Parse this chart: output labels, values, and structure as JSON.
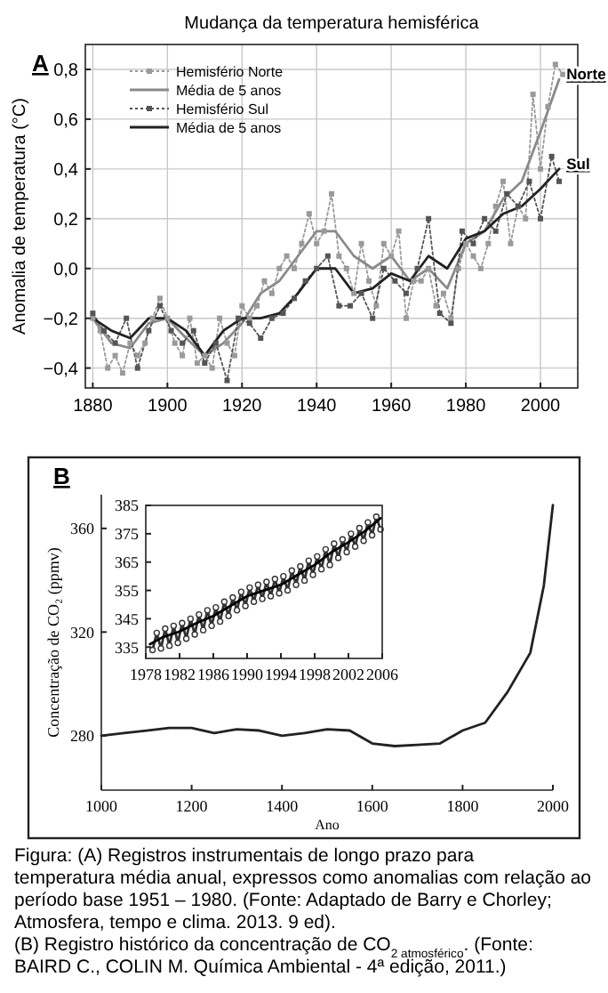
{
  "chart_data": [
    {
      "type": "line",
      "title": "Mudança da temperatura hemisférica",
      "ylabel": "Anomalia de temperatura (°C)",
      "xlim": [
        1878,
        2010
      ],
      "xticks": [
        1880,
        1900,
        1920,
        1940,
        1960,
        1980,
        2000
      ],
      "ylim": [
        -0.48,
        0.9
      ],
      "yticks": [
        {
          "value": -0.4,
          "label": "−0,4"
        },
        {
          "value": -0.2,
          "label": "−0,2"
        },
        {
          "value": 0,
          "label": "0,0"
        },
        {
          "value": 0.2,
          "label": "0,2"
        },
        {
          "value": 0.4,
          "label": "0,4"
        },
        {
          "value": 0.6,
          "label": "0,6"
        },
        {
          "value": 0.8,
          "label": "0,8"
        }
      ],
      "grid": true,
      "legend": "top left",
      "annotations": [
        "A",
        {
          "text": "Norte",
          "x": 2006,
          "y": 0.76
        },
        {
          "text": "Sul",
          "x": 2006,
          "y": 0.4
        }
      ],
      "series": [
        {
          "name": "Hemisfério Norte",
          "color": "#9a9a9a",
          "line_style": "dotted",
          "marker": "square",
          "x": [
            1880,
            1882,
            1884,
            1886,
            1888,
            1890,
            1892,
            1894,
            1896,
            1898,
            1900,
            1902,
            1904,
            1906,
            1908,
            1910,
            1912,
            1914,
            1916,
            1918,
            1920,
            1922,
            1924,
            1926,
            1928,
            1930,
            1932,
            1934,
            1936,
            1938,
            1940,
            1942,
            1944,
            1946,
            1948,
            1950,
            1952,
            1954,
            1956,
            1958,
            1960,
            1962,
            1964,
            1966,
            1968,
            1970,
            1972,
            1974,
            1976,
            1978,
            1980,
            1982,
            1984,
            1986,
            1988,
            1990,
            1992,
            1994,
            1996,
            1998,
            2000,
            2002,
            2004,
            2006
          ],
          "values": [
            -0.2,
            -0.25,
            -0.4,
            -0.35,
            -0.42,
            -0.3,
            -0.35,
            -0.3,
            -0.2,
            -0.12,
            -0.2,
            -0.3,
            -0.35,
            -0.2,
            -0.38,
            -0.35,
            -0.4,
            -0.2,
            -0.3,
            -0.35,
            -0.15,
            -0.2,
            -0.15,
            -0.05,
            -0.1,
            0.0,
            0.05,
            0.0,
            0.1,
            0.22,
            0.1,
            0.15,
            0.3,
            0.05,
            0.0,
            -0.1,
            0.1,
            -0.05,
            -0.15,
            0.1,
            0.05,
            0.15,
            -0.2,
            -0.05,
            -0.05,
            0.0,
            -0.15,
            -0.1,
            -0.2,
            0.0,
            0.1,
            0.05,
            0.0,
            0.1,
            0.25,
            0.35,
            0.1,
            0.25,
            0.2,
            0.7,
            0.4,
            0.65,
            0.82,
            0.78
          ]
        },
        {
          "name": "Média de 5 anos",
          "color": "#8a8a8a",
          "line_style": "solid",
          "marker": "none",
          "x": [
            1880,
            1885,
            1890,
            1895,
            1900,
            1905,
            1910,
            1915,
            1920,
            1925,
            1930,
            1935,
            1940,
            1945,
            1950,
            1955,
            1960,
            1965,
            1970,
            1975,
            1980,
            1985,
            1990,
            1995,
            2000,
            2005
          ],
          "values": [
            -0.2,
            -0.3,
            -0.32,
            -0.22,
            -0.2,
            -0.28,
            -0.35,
            -0.3,
            -0.22,
            -0.1,
            -0.05,
            0.05,
            0.15,
            0.15,
            0.05,
            0.0,
            0.05,
            -0.05,
            0.0,
            -0.08,
            0.1,
            0.15,
            0.28,
            0.35,
            0.55,
            0.76
          ]
        },
        {
          "name": "Hemisfério Sul",
          "color": "#555555",
          "line_style": "dotted",
          "marker": "square",
          "x": [
            1880,
            1883,
            1886,
            1889,
            1892,
            1895,
            1898,
            1901,
            1904,
            1907,
            1910,
            1913,
            1916,
            1919,
            1922,
            1925,
            1928,
            1931,
            1934,
            1937,
            1940,
            1943,
            1946,
            1949,
            1952,
            1955,
            1958,
            1961,
            1964,
            1967,
            1970,
            1973,
            1976,
            1979,
            1982,
            1985,
            1988,
            1991,
            1994,
            1997,
            2000,
            2003,
            2005
          ],
          "values": [
            -0.18,
            -0.25,
            -0.3,
            -0.2,
            -0.4,
            -0.25,
            -0.15,
            -0.25,
            -0.3,
            -0.25,
            -0.38,
            -0.3,
            -0.45,
            -0.2,
            -0.22,
            -0.28,
            -0.2,
            -0.18,
            -0.12,
            -0.05,
            0.0,
            0.05,
            -0.15,
            -0.15,
            -0.1,
            -0.2,
            0.0,
            -0.05,
            -0.1,
            0.0,
            0.2,
            -0.18,
            -0.22,
            0.15,
            0.1,
            0.2,
            0.15,
            0.3,
            0.25,
            0.35,
            0.2,
            0.45,
            0.35
          ]
        },
        {
          "name": "Média de 5 anos",
          "color": "#222222",
          "line_style": "solid",
          "marker": "none",
          "x": [
            1880,
            1885,
            1890,
            1895,
            1900,
            1905,
            1910,
            1915,
            1920,
            1925,
            1930,
            1935,
            1940,
            1945,
            1950,
            1955,
            1960,
            1965,
            1970,
            1975,
            1980,
            1985,
            1990,
            1995,
            2000,
            2005
          ],
          "values": [
            -0.2,
            -0.25,
            -0.28,
            -0.2,
            -0.2,
            -0.25,
            -0.35,
            -0.25,
            -0.2,
            -0.2,
            -0.18,
            -0.1,
            0.0,
            0.0,
            -0.1,
            -0.08,
            -0.02,
            -0.05,
            0.05,
            0.0,
            0.12,
            0.15,
            0.22,
            0.25,
            0.32,
            0.4
          ]
        }
      ]
    },
    {
      "type": "line",
      "xlabel": "Ano",
      "ylabel": "Concentração de CO₂ (ppmv)",
      "xlim": [
        1000,
        2000
      ],
      "xticks": [
        1000,
        1200,
        1400,
        1600,
        1800,
        2000
      ],
      "ylim": [
        259,
        373
      ],
      "yticks": [
        280,
        320,
        360
      ],
      "annotations": [
        "B",
        "Figura: (A) Registros instrumentais de longo prazo para temperatura média anual, expressos como anomalias com relação ao período base 1951 – 1980. (Fonte: Adaptado de Barry e Chorley; Atmosfera, tempo e clima. 2013. 9 ed).",
        "(B) Registro histórico da concentração de CO$_{2 atmosférico}$. (Fonte: BAIRD C., COLIN M. Química Ambiental - 4ª edição, 2011.)"
      ],
      "series": [
        {
          "color": "#222222",
          "x": [
            1000,
            1050,
            1100,
            1150,
            1200,
            1250,
            1300,
            1350,
            1400,
            1450,
            1500,
            1550,
            1600,
            1650,
            1700,
            1750,
            1800,
            1850,
            1900,
            1950,
            1980,
            2000
          ],
          "values": [
            280,
            281,
            282,
            283,
            283,
            281,
            282.5,
            282,
            280,
            281,
            282.5,
            282,
            277,
            276,
            276.5,
            277,
            282,
            285,
            297,
            312,
            338,
            369
          ]
        }
      ]
    },
    {
      "type": "line",
      "xlim": [
        1978,
        2006
      ],
      "xticks": [
        1978,
        1982,
        1986,
        1990,
        1994,
        1998,
        2002,
        2006
      ],
      "ylim": [
        331,
        385
      ],
      "yticks": [
        335,
        345,
        355,
        365,
        375,
        385
      ],
      "series": [
        {
          "color": "#333333",
          "marker": "circle",
          "x": [
            1978.8,
            1979.3,
            1979.8,
            1980.3,
            1980.8,
            1981.3,
            1981.8,
            1982.3,
            1982.8,
            1983.3,
            1983.8,
            1984.3,
            1984.8,
            1985.3,
            1985.8,
            1986.3,
            1986.8,
            1987.3,
            1987.8,
            1988.3,
            1988.8,
            1989.3,
            1989.8,
            1990.3,
            1990.8,
            1991.3,
            1991.8,
            1992.3,
            1992.8,
            1993.3,
            1993.8,
            1994.3,
            1994.8,
            1995.3,
            1995.8,
            1996.3,
            1996.8,
            1997.3,
            1997.8,
            1998.3,
            1998.8,
            1999.3,
            1999.8,
            2000.3,
            2000.8,
            2001.3,
            2001.8,
            2002.3,
            2002.8,
            2003.3,
            2003.8,
            2004.3,
            2004.8,
            2005.3,
            2005.8
          ],
          "values": [
            334,
            340,
            334.5,
            341.5,
            335.5,
            342.5,
            336.5,
            343.5,
            338,
            345,
            339.5,
            346.5,
            341,
            348,
            342.5,
            349,
            344,
            351,
            346,
            352.5,
            348,
            354.5,
            349.5,
            356,
            351,
            357,
            352,
            358,
            353,
            359,
            354,
            360,
            355,
            362,
            357,
            363.5,
            358.5,
            365.5,
            360.5,
            367,
            362.5,
            369.5,
            364,
            371.5,
            366.5,
            373,
            368.5,
            375,
            370.5,
            377,
            372.5,
            379,
            374.5,
            381,
            376.5
          ]
        },
        {
          "color": "#000000",
          "marker": "none",
          "x": [
            1978.5,
            1980,
            1982,
            1984,
            1986,
            1988,
            1990,
            1992,
            1994,
            1996,
            1998,
            2000,
            2002,
            2004,
            2005.8
          ],
          "values": [
            336,
            338.5,
            340.5,
            343.5,
            346,
            349.5,
            353,
            355,
            357,
            360.5,
            364,
            368.5,
            372,
            376,
            380.5
          ]
        }
      ]
    }
  ]
}
